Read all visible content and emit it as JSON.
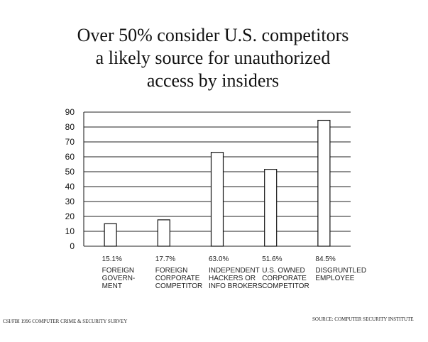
{
  "title_lines": [
    "Over 50% consider U.S. competitors",
    "a likely source for unauthorized",
    "access by insiders"
  ],
  "chart_data": {
    "type": "bar",
    "title": "Over 50% consider U.S. competitors a likely source for unauthorized access by insiders",
    "categories": [
      [
        "FOREIGN",
        "GOVERN-",
        "MENT"
      ],
      [
        "FOREIGN",
        "CORPORATE",
        "COMPETITOR"
      ],
      [
        "INDEPENDENT",
        "HACKERS OR",
        "INFO BROKERS"
      ],
      [
        "U.S. OWNED",
        "CORPORATE",
        "COMPETITOR"
      ],
      [
        "DISGRUNTLED",
        "EMPLOYEE"
      ]
    ],
    "values": [
      15.1,
      17.7,
      63.0,
      51.6,
      84.5
    ],
    "value_labels": [
      "15.1%",
      "17.7%",
      "63.0%",
      "51.6%",
      "84.5%"
    ],
    "yticks": [
      0,
      10,
      20,
      30,
      40,
      50,
      60,
      70,
      80,
      90
    ],
    "ylim": [
      0,
      90
    ],
    "grid": true,
    "colors": {
      "bar_fill": "#ffffff",
      "bar_stroke": "#111111",
      "grid": "#222222"
    }
  },
  "footer": {
    "left": "CSI/FBI 1996 COMPUTER CRIME & SECURITY SURVEY",
    "right": "SOURCE: COMPUTER SECURITY INSTITUTE"
  }
}
